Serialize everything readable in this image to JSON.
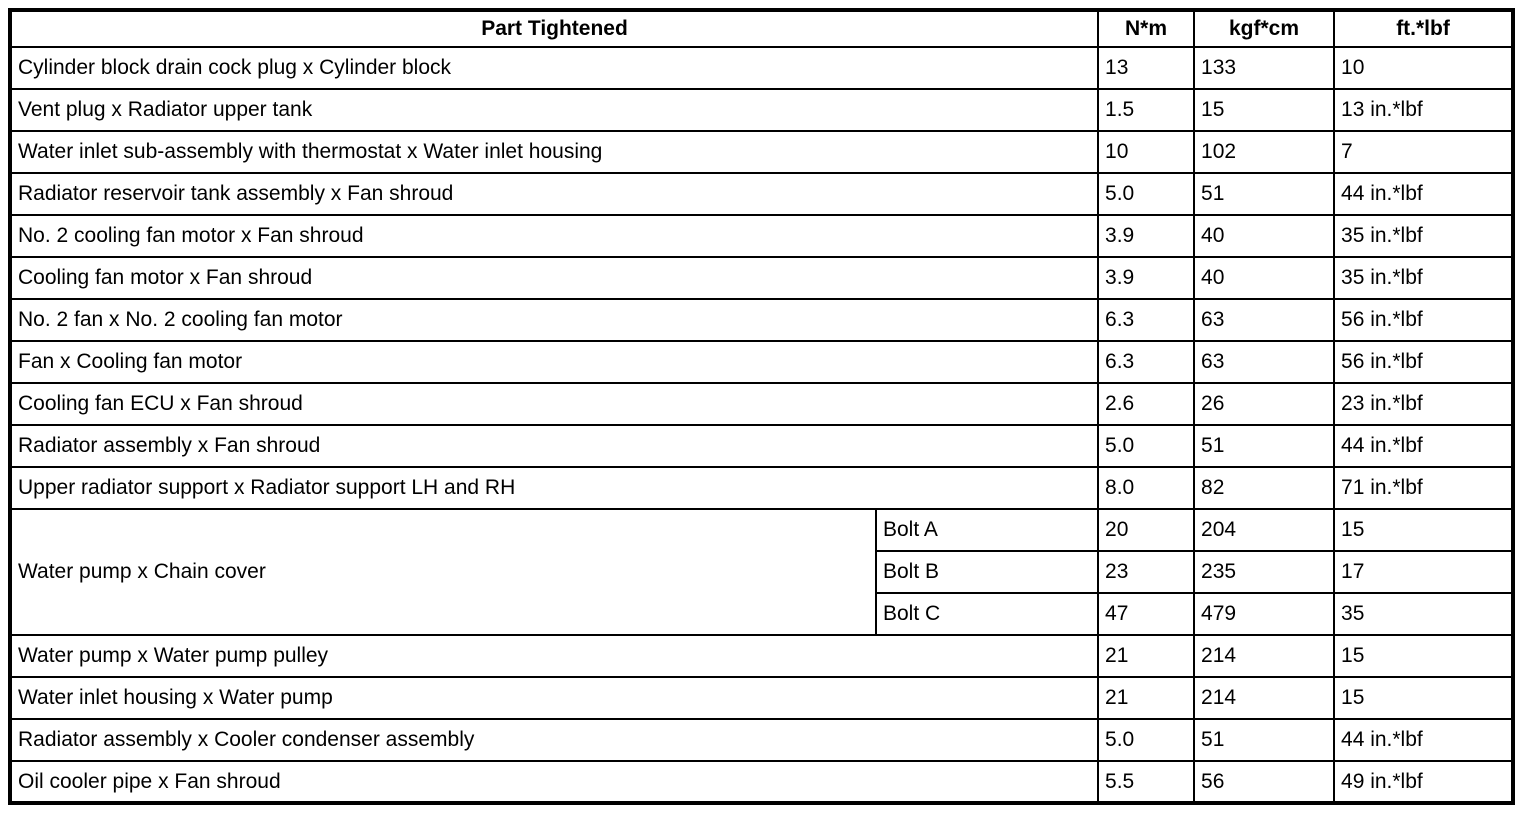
{
  "table": {
    "headers": {
      "part": "Part Tightened",
      "nm": "N*m",
      "kgfcm": "kgf*cm",
      "ftlbf": "ft.*lbf"
    },
    "rows_before": [
      {
        "part": "Cylinder block drain cock plug x Cylinder block",
        "nm": "13",
        "kgfcm": "133",
        "ftlbf": "10"
      },
      {
        "part": "Vent plug x Radiator upper tank",
        "nm": "1.5",
        "kgfcm": "15",
        "ftlbf": "13 in.*lbf"
      },
      {
        "part": "Water inlet sub-assembly with thermostat x Water inlet housing",
        "nm": "10",
        "kgfcm": "102",
        "ftlbf": "7"
      },
      {
        "part": "Radiator reservoir tank assembly x Fan shroud",
        "nm": "5.0",
        "kgfcm": "51",
        "ftlbf": "44 in.*lbf"
      },
      {
        "part": "No. 2 cooling fan motor x Fan shroud",
        "nm": "3.9",
        "kgfcm": "40",
        "ftlbf": "35 in.*lbf"
      },
      {
        "part": "Cooling fan motor x Fan shroud",
        "nm": "3.9",
        "kgfcm": "40",
        "ftlbf": "35 in.*lbf"
      },
      {
        "part": "No. 2 fan x No. 2 cooling fan motor",
        "nm": "6.3",
        "kgfcm": "63",
        "ftlbf": "56 in.*lbf"
      },
      {
        "part": "Fan x Cooling fan motor",
        "nm": "6.3",
        "kgfcm": "63",
        "ftlbf": "56 in.*lbf"
      },
      {
        "part": "Cooling fan ECU x Fan shroud",
        "nm": "2.6",
        "kgfcm": "26",
        "ftlbf": "23 in.*lbf"
      },
      {
        "part": "Radiator assembly x Fan shroud",
        "nm": "5.0",
        "kgfcm": "51",
        "ftlbf": "44 in.*lbf"
      },
      {
        "part": "Upper radiator support x Radiator support LH and RH",
        "nm": "8.0",
        "kgfcm": "82",
        "ftlbf": "71 in.*lbf"
      }
    ],
    "group": {
      "part": "Water pump x Chain cover",
      "sub_rows": [
        {
          "label": "Bolt A",
          "nm": "20",
          "kgfcm": "204",
          "ftlbf": "15"
        },
        {
          "label": "Bolt B",
          "nm": "23",
          "kgfcm": "235",
          "ftlbf": "17"
        },
        {
          "label": "Bolt C",
          "nm": "47",
          "kgfcm": "479",
          "ftlbf": "35"
        }
      ]
    },
    "rows_after": [
      {
        "part": "Water pump x Water pump pulley",
        "nm": "21",
        "kgfcm": "214",
        "ftlbf": "15"
      },
      {
        "part": "Water inlet housing x Water pump",
        "nm": "21",
        "kgfcm": "214",
        "ftlbf": "15"
      },
      {
        "part": "Radiator assembly x Cooler condenser assembly",
        "nm": "5.0",
        "kgfcm": "51",
        "ftlbf": "44 in.*lbf"
      },
      {
        "part": "Oil cooler pipe x Fan shroud",
        "nm": "5.5",
        "kgfcm": "56",
        "ftlbf": "49 in.*lbf"
      }
    ]
  }
}
